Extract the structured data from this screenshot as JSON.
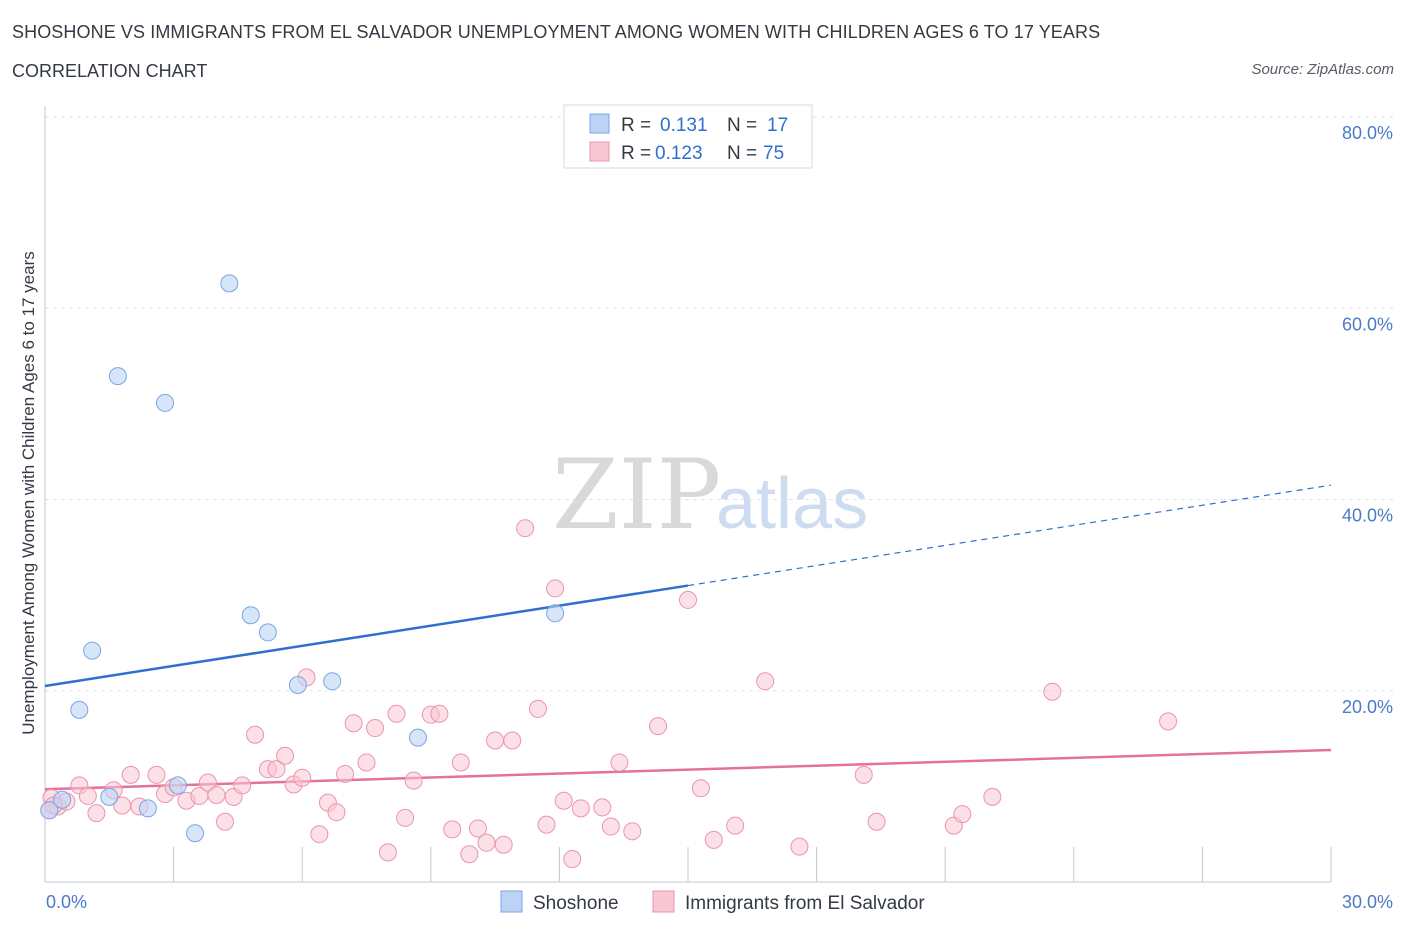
{
  "header": {
    "title": "SHOSHONE VS IMMIGRANTS FROM EL SALVADOR UNEMPLOYMENT AMONG WOMEN WITH CHILDREN AGES 6 TO 17 YEARS",
    "subtitle": "CORRELATION CHART",
    "source": "Source: ZipAtlas.com"
  },
  "watermark": {
    "zip": "ZIP",
    "atlas": "atlas"
  },
  "colors": {
    "shoshone_fill": "#bcd3f5",
    "shoshone_stroke": "#7aa6e3",
    "shoshone_line": "#2f6fce",
    "elsalvador_fill": "#f9c6d4",
    "elsalvador_stroke": "#eb94ad",
    "elsalvador_line": "#e4719a",
    "grid": "#dde3ea",
    "tick_text": "#4a7ac8"
  },
  "chart_data": {
    "type": "scatter",
    "title": "SHOSHONE VS IMMIGRANTS FROM EL SALVADOR UNEMPLOYMENT AMONG WOMEN WITH CHILDREN AGES 6 TO 17 YEARS",
    "xlabel": "",
    "ylabel": "Unemployment Among Women with Children Ages 6 to 17 years",
    "xlim": [
      0,
      30
    ],
    "ylim": [
      0,
      80
    ],
    "x_tick_labels": [
      "0.0%",
      "30.0%"
    ],
    "y_ticks": [
      20,
      40,
      60,
      80
    ],
    "y_tick_labels": [
      "20.0%",
      "40.0%",
      "60.0%",
      "80.0%"
    ],
    "grid": true,
    "legend_position": "top-center",
    "stats": [
      {
        "series": "Shoshone",
        "r_label": "R =",
        "r": "0.131",
        "n_label": "N =",
        "n": "17"
      },
      {
        "series": "Immigrants from El Salvador",
        "r_label": "R =",
        "r": "0.123",
        "n_label": "N =",
        "n": "75"
      }
    ],
    "series": [
      {
        "name": "Shoshone",
        "points": [
          [
            0.1,
            7.5
          ],
          [
            0.4,
            8.6
          ],
          [
            0.8,
            18.0
          ],
          [
            1.1,
            24.2
          ],
          [
            1.5,
            8.9
          ],
          [
            1.7,
            52.9
          ],
          [
            2.4,
            7.7
          ],
          [
            2.8,
            50.1
          ],
          [
            3.1,
            10.1
          ],
          [
            3.5,
            5.1
          ],
          [
            4.3,
            62.6
          ],
          [
            4.8,
            27.9
          ],
          [
            5.2,
            26.1
          ],
          [
            5.9,
            20.6
          ],
          [
            6.7,
            21.0
          ],
          [
            8.7,
            15.1
          ],
          [
            11.9,
            28.1
          ]
        ],
        "trend": {
          "x0": 0,
          "y0": 20.5,
          "x1": 15,
          "y1": 31.0,
          "dashed_to_x": 30,
          "dashed_to_y": 41.5
        }
      },
      {
        "name": "Immigrants from El Salvador",
        "points": [
          [
            0.1,
            7.5
          ],
          [
            0.15,
            8.8
          ],
          [
            0.3,
            7.9
          ],
          [
            0.5,
            8.4
          ],
          [
            0.8,
            10.1
          ],
          [
            1.0,
            9.0
          ],
          [
            1.2,
            7.2
          ],
          [
            1.6,
            9.6
          ],
          [
            1.8,
            8.0
          ],
          [
            2.0,
            11.2
          ],
          [
            2.2,
            7.9
          ],
          [
            2.6,
            11.2
          ],
          [
            2.8,
            9.2
          ],
          [
            3.0,
            9.9
          ],
          [
            3.3,
            8.5
          ],
          [
            3.6,
            9.0
          ],
          [
            3.8,
            10.4
          ],
          [
            4.0,
            9.1
          ],
          [
            4.2,
            6.3
          ],
          [
            4.4,
            8.9
          ],
          [
            4.6,
            10.1
          ],
          [
            4.9,
            15.4
          ],
          [
            5.2,
            11.8
          ],
          [
            5.4,
            11.8
          ],
          [
            5.6,
            13.2
          ],
          [
            5.8,
            10.2
          ],
          [
            6.0,
            10.9
          ],
          [
            6.1,
            21.4
          ],
          [
            6.4,
            5.0
          ],
          [
            6.6,
            8.3
          ],
          [
            6.8,
            7.3
          ],
          [
            7.0,
            11.3
          ],
          [
            7.2,
            16.6
          ],
          [
            7.5,
            12.5
          ],
          [
            7.7,
            16.1
          ],
          [
            8.0,
            3.1
          ],
          [
            8.2,
            17.6
          ],
          [
            8.4,
            6.7
          ],
          [
            8.6,
            10.6
          ],
          [
            9.0,
            17.5
          ],
          [
            9.2,
            17.6
          ],
          [
            9.5,
            5.5
          ],
          [
            9.7,
            12.5
          ],
          [
            9.9,
            2.9
          ],
          [
            10.1,
            5.6
          ],
          [
            10.3,
            4.1
          ],
          [
            10.5,
            14.8
          ],
          [
            10.7,
            3.9
          ],
          [
            10.9,
            14.8
          ],
          [
            11.2,
            37.0
          ],
          [
            11.5,
            18.1
          ],
          [
            11.7,
            6.0
          ],
          [
            11.9,
            30.7
          ],
          [
            12.1,
            8.5
          ],
          [
            12.3,
            2.4
          ],
          [
            12.5,
            7.7
          ],
          [
            13.0,
            7.8
          ],
          [
            13.2,
            5.8
          ],
          [
            13.4,
            12.5
          ],
          [
            13.7,
            5.3
          ],
          [
            14.3,
            16.3
          ],
          [
            15.0,
            29.5
          ],
          [
            15.3,
            9.8
          ],
          [
            15.6,
            4.4
          ],
          [
            16.1,
            5.9
          ],
          [
            16.8,
            21.0
          ],
          [
            17.6,
            3.7
          ],
          [
            19.1,
            11.2
          ],
          [
            19.4,
            6.3
          ],
          [
            21.2,
            5.9
          ],
          [
            21.4,
            7.1
          ],
          [
            22.1,
            8.9
          ],
          [
            23.5,
            19.9
          ],
          [
            26.2,
            16.8
          ],
          [
            0.2,
            8.0
          ]
        ],
        "trend": {
          "x0": 0,
          "y0": 9.7,
          "x1": 30,
          "y1": 13.8
        }
      }
    ]
  },
  "bottom_legend": {
    "items": [
      "Shoshone",
      "Immigrants from El Salvador"
    ]
  }
}
